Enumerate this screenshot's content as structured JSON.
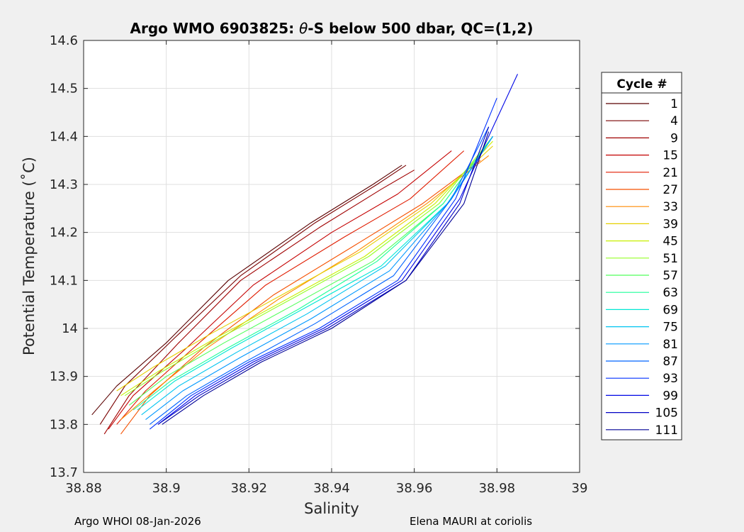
{
  "chart_data": {
    "type": "line",
    "title_prefix": "Argo WMO 6903825: ",
    "title_theta": "θ",
    "title_suffix": "-S below 500 dbar,  QC=(1,2)",
    "xlabel": "Salinity",
    "ylabel": "Potential Temperature (˚C)",
    "xlim": [
      38.88,
      39.0
    ],
    "ylim": [
      13.7,
      14.6
    ],
    "xticks": [
      "38.88",
      "38.9",
      "38.92",
      "38.94",
      "38.96",
      "38.98",
      "39"
    ],
    "yticks": [
      "13.7",
      "13.8",
      "13.9",
      "14",
      "14.1",
      "14.2",
      "14.3",
      "14.4",
      "14.5",
      "14.6"
    ],
    "grid": true,
    "legend_title": "Cycle #",
    "legend_placement": "right-outside",
    "legend": [
      {
        "label": "1",
        "color": "#5a0000"
      },
      {
        "label": "4",
        "color": "#7a0000"
      },
      {
        "label": "9",
        "color": "#a00000"
      },
      {
        "label": "15",
        "color": "#c40000"
      },
      {
        "label": "21",
        "color": "#e01c00"
      },
      {
        "label": "27",
        "color": "#f55000"
      },
      {
        "label": "33",
        "color": "#ff8a00"
      },
      {
        "label": "39",
        "color": "#e6d000"
      },
      {
        "label": "45",
        "color": "#c8ef00"
      },
      {
        "label": "51",
        "color": "#96ff26"
      },
      {
        "label": "57",
        "color": "#52ff5c"
      },
      {
        "label": "63",
        "color": "#1eff9a"
      },
      {
        "label": "69",
        "color": "#00e8d4"
      },
      {
        "label": "75",
        "color": "#00c4f0"
      },
      {
        "label": "81",
        "color": "#0098ff"
      },
      {
        "label": "87",
        "color": "#0064ff"
      },
      {
        "label": "93",
        "color": "#0030ff"
      },
      {
        "label": "99",
        "color": "#0006e6"
      },
      {
        "label": "105",
        "color": "#0000c4"
      },
      {
        "label": "111",
        "color": "#000096"
      }
    ],
    "series": [
      {
        "name": "1",
        "color": "#5a0000",
        "x": [
          38.882,
          38.888,
          38.9,
          38.915,
          38.935,
          38.95,
          38.957
        ],
        "y": [
          13.82,
          13.88,
          13.97,
          14.1,
          14.22,
          14.3,
          14.34
        ]
      },
      {
        "name": "4",
        "color": "#7a0000",
        "x": [
          38.884,
          38.89,
          38.902,
          38.918,
          38.936,
          38.951,
          38.958
        ],
        "y": [
          13.8,
          13.88,
          13.98,
          14.11,
          14.22,
          14.3,
          14.34
        ]
      },
      {
        "name": "9",
        "color": "#a00000",
        "x": [
          38.885,
          38.891,
          38.903,
          38.918,
          38.937,
          38.952,
          38.96
        ],
        "y": [
          13.78,
          13.86,
          13.97,
          14.1,
          14.21,
          14.29,
          14.33
        ]
      },
      {
        "name": "15",
        "color": "#c40000",
        "x": [
          38.886,
          38.892,
          38.905,
          38.921,
          38.94,
          38.956,
          38.969
        ],
        "y": [
          13.79,
          13.86,
          13.96,
          14.09,
          14.2,
          14.28,
          14.37
        ]
      },
      {
        "name": "21",
        "color": "#e01c00",
        "x": [
          38.888,
          38.895,
          38.908,
          38.924,
          38.943,
          38.959,
          38.972
        ],
        "y": [
          13.8,
          13.87,
          13.97,
          14.09,
          14.19,
          14.27,
          14.37
        ]
      },
      {
        "name": "27",
        "color": "#f55000",
        "x": [
          38.889,
          38.896,
          38.909,
          38.926,
          38.945,
          38.962,
          38.976
        ],
        "y": [
          13.78,
          13.86,
          13.96,
          14.07,
          14.17,
          14.26,
          14.35
        ]
      },
      {
        "name": "33",
        "color": "#ff8a00",
        "x": [
          38.889,
          38.897,
          38.91,
          38.927,
          38.946,
          38.963,
          38.978
        ],
        "y": [
          13.81,
          13.87,
          13.96,
          14.06,
          14.16,
          14.26,
          14.36
        ]
      },
      {
        "name": "39",
        "color": "#e6d000",
        "x": [
          38.888,
          38.897,
          38.911,
          38.928,
          38.947,
          38.964,
          38.979
        ],
        "y": [
          13.87,
          13.92,
          13.99,
          14.07,
          14.16,
          14.26,
          14.38
        ]
      },
      {
        "name": "45",
        "color": "#c8ef00",
        "x": [
          38.889,
          38.898,
          38.912,
          38.929,
          38.948,
          38.965,
          38.979
        ],
        "y": [
          13.86,
          13.91,
          13.98,
          14.06,
          14.15,
          14.26,
          14.39
        ]
      },
      {
        "name": "51",
        "color": "#96ff26",
        "x": [
          38.89,
          38.899,
          38.913,
          38.93,
          38.949,
          38.966,
          38.979
        ],
        "y": [
          13.86,
          13.91,
          13.98,
          14.06,
          14.15,
          14.26,
          14.4
        ]
      },
      {
        "name": "57",
        "color": "#52ff5c",
        "x": [
          38.891,
          38.9,
          38.914,
          38.931,
          38.95,
          38.967,
          38.979
        ],
        "y": [
          13.84,
          13.9,
          13.97,
          14.05,
          14.14,
          14.26,
          14.4
        ]
      },
      {
        "name": "63",
        "color": "#1eff9a",
        "x": [
          38.892,
          38.901,
          38.915,
          38.932,
          38.951,
          38.967,
          38.979
        ],
        "y": [
          13.83,
          13.89,
          13.96,
          14.04,
          14.14,
          14.26,
          14.4
        ]
      },
      {
        "name": "69",
        "color": "#00e8d4",
        "x": [
          38.893,
          38.902,
          38.916,
          38.933,
          38.952,
          38.968,
          38.979
        ],
        "y": [
          13.83,
          13.89,
          13.96,
          14.04,
          14.13,
          14.26,
          14.4
        ]
      },
      {
        "name": "75",
        "color": "#00c4f0",
        "x": [
          38.894,
          38.903,
          38.917,
          38.934,
          38.953,
          38.968,
          38.979
        ],
        "y": [
          13.82,
          13.88,
          13.95,
          14.03,
          14.13,
          14.26,
          14.4
        ]
      },
      {
        "name": "81",
        "color": "#0098ff",
        "x": [
          38.895,
          38.904,
          38.918,
          38.935,
          38.954,
          38.969,
          38.979
        ],
        "y": [
          13.81,
          13.87,
          13.94,
          14.02,
          14.12,
          14.27,
          14.4
        ]
      },
      {
        "name": "87",
        "color": "#0064ff",
        "x": [
          38.896,
          38.905,
          38.919,
          38.936,
          38.955,
          38.969,
          38.978
        ],
        "y": [
          13.8,
          13.86,
          13.93,
          14.01,
          14.11,
          14.27,
          14.42
        ]
      },
      {
        "name": "93",
        "color": "#0030ff",
        "x": [
          38.896,
          38.906,
          38.92,
          38.937,
          38.956,
          38.97,
          38.98
        ],
        "y": [
          13.79,
          13.86,
          13.93,
          14.0,
          14.1,
          14.27,
          14.48
        ]
      },
      {
        "name": "99",
        "color": "#0006e6",
        "x": [
          38.898,
          38.907,
          38.921,
          38.938,
          38.957,
          38.971,
          38.985
        ],
        "y": [
          13.8,
          13.86,
          13.93,
          14.0,
          14.1,
          14.27,
          14.53
        ]
      },
      {
        "name": "105",
        "color": "#0000c4",
        "x": [
          38.898,
          38.908,
          38.922,
          38.939,
          38.958,
          38.971,
          38.978
        ],
        "y": [
          13.8,
          13.86,
          13.93,
          14.0,
          14.1,
          14.26,
          14.42
        ]
      },
      {
        "name": "111",
        "color": "#000096",
        "x": [
          38.899,
          38.909,
          38.923,
          38.94,
          38.958,
          38.972,
          38.978
        ],
        "y": [
          13.8,
          13.86,
          13.93,
          14.0,
          14.1,
          14.26,
          14.41
        ]
      }
    ]
  },
  "footer": {
    "left": "Argo WHOI 08-Jan-2026",
    "right": "Elena MAURI at coriolis"
  }
}
